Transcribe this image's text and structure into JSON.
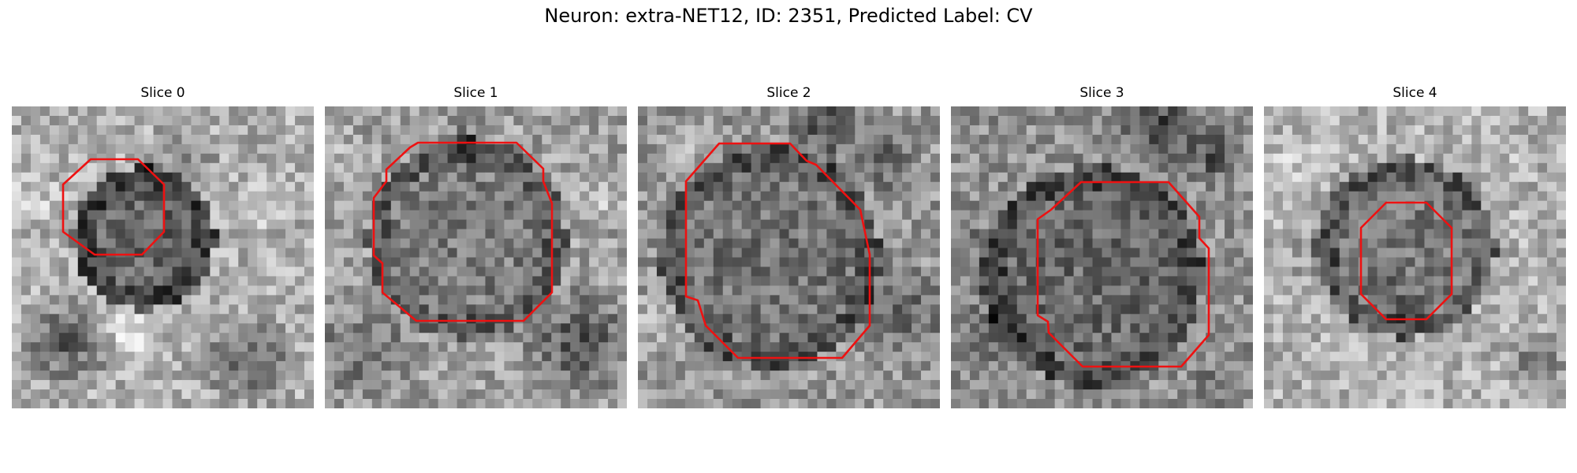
{
  "figure": {
    "title": "Neuron: extra-NET12, ID: 2351, Predicted Label: CV"
  },
  "colors": {
    "contour": "#ee1111",
    "background": "#ffffff"
  },
  "slices": [
    {
      "title": "Slice 0"
    },
    {
      "title": "Slice 1"
    },
    {
      "title": "Slice 2"
    },
    {
      "title": "Slice 3"
    },
    {
      "title": "Slice 4"
    }
  ]
}
